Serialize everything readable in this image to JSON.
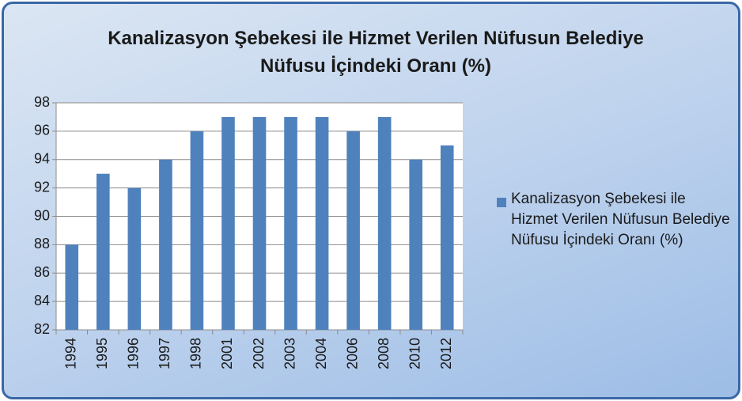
{
  "chart_data": {
    "type": "bar",
    "title": "Kanalizasyon Şebekesi ile Hizmet Verilen Nüfusun Belediye Nüfusu İçindeki Oranı (%)",
    "categories": [
      "1994",
      "1995",
      "1996",
      "1997",
      "1998",
      "2001",
      "2002",
      "2003",
      "2004",
      "2006",
      "2008",
      "2010",
      "2012"
    ],
    "series": [
      {
        "name": "Kanalizasyon Şebekesi ile Hizmet Verilen Nüfusun Belediye Nüfusu İçindeki Oranı (%)",
        "color": "#4f81bd",
        "values": [
          88,
          93,
          92,
          94,
          96,
          97,
          97,
          97,
          97,
          96,
          97,
          94,
          95
        ]
      }
    ],
    "ylim": [
      82,
      98
    ],
    "yticks": [
      82,
      84,
      86,
      88,
      90,
      92,
      94,
      96,
      98
    ],
    "grid": true,
    "legend": "right"
  }
}
